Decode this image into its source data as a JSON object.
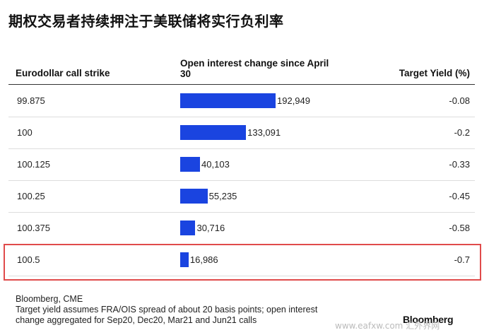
{
  "chart_data": {
    "type": "table",
    "title": "期权交易者持续押注于美联储将实行负利率",
    "columns": [
      "Eurodollar call strike",
      "Open interest change since April 30",
      "Target Yield (%)"
    ],
    "rows": [
      {
        "strike": "99.875",
        "open_interest_change": 192949,
        "open_interest_label": "192,949",
        "target_yield": "-0.08"
      },
      {
        "strike": "100",
        "open_interest_change": 133091,
        "open_interest_label": "133,091",
        "target_yield": "-0.2"
      },
      {
        "strike": "100.125",
        "open_interest_change": 40103,
        "open_interest_label": "40,103",
        "target_yield": "-0.33"
      },
      {
        "strike": "100.25",
        "open_interest_change": 55235,
        "open_interest_label": "55,235",
        "target_yield": "-0.45"
      },
      {
        "strike": "100.375",
        "open_interest_change": 30716,
        "open_interest_label": "30,716",
        "target_yield": "-0.58"
      },
      {
        "strike": "100.5",
        "open_interest_change": 16986,
        "open_interest_label": "16,986",
        "target_yield": "-0.7"
      }
    ],
    "highlighted_row": "100.5",
    "bar_color": "#1a44e0",
    "highlight_color": "#e04b4b"
  },
  "footer": {
    "source": "Bloomberg, CME",
    "note_line1": "Target yield assumes FRA/OIS spread of about 20 basis points; open interest",
    "note_line2": "change aggregated for Sep20, Dec20, Mar21 and Jun21 calls",
    "logo": "Bloomberg"
  },
  "watermark": "www.eafxw.com  汇外界网"
}
